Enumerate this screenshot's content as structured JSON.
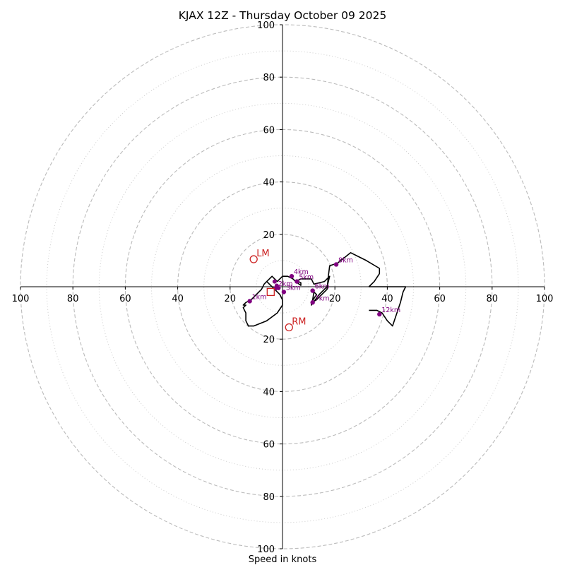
{
  "chart_data": {
    "type": "hodograph",
    "title": "KJAX 12Z - Thursday October 09 2025",
    "xlabel": "Speed in knots",
    "range": 100,
    "major_rings": [
      20,
      40,
      60,
      80,
      100
    ],
    "minor_rings": [
      10,
      30,
      50,
      70,
      90
    ],
    "tick_labels": [
      "100",
      "80",
      "60",
      "40",
      "20",
      "20",
      "40",
      "60",
      "80",
      "100"
    ],
    "y_tick_labels": [
      "100",
      "80",
      "60",
      "40",
      "20",
      "20",
      "40",
      "60",
      "80",
      "100"
    ],
    "trace": [
      [
        0,
        -5
      ],
      [
        -1,
        -3
      ],
      [
        -3,
        -1
      ],
      [
        -5,
        1
      ],
      [
        -6,
        2
      ],
      [
        -5,
        3
      ],
      [
        -4,
        4
      ],
      [
        -3,
        3
      ],
      [
        -2,
        2
      ],
      [
        0,
        4
      ],
      [
        2,
        4
      ],
      [
        4,
        3
      ],
      [
        5,
        2
      ],
      [
        6,
        2
      ],
      [
        7,
        1.5
      ],
      [
        7,
        0.5
      ],
      [
        5,
        2
      ],
      [
        7,
        3
      ],
      [
        11,
        3
      ],
      [
        12,
        1
      ],
      [
        16,
        2
      ],
      [
        18,
        4
      ],
      [
        17,
        0
      ],
      [
        14,
        -3
      ],
      [
        11,
        -7
      ],
      [
        11.5,
        -5
      ],
      [
        12,
        -2
      ],
      [
        13,
        -3
      ],
      [
        11,
        -6
      ],
      [
        13,
        -5
      ],
      [
        15,
        -3
      ],
      [
        17,
        -1
      ],
      [
        17.5,
        4
      ],
      [
        18,
        8
      ],
      [
        21,
        9
      ],
      [
        26,
        13
      ],
      [
        32,
        10
      ],
      [
        37,
        7
      ],
      [
        37,
        5
      ],
      [
        35,
        2
      ],
      [
        33,
        0
      ],
      [
        46,
        0
      ],
      [
        47,
        0
      ],
      [
        46,
        -2
      ],
      [
        45,
        -6
      ],
      [
        42,
        -15
      ],
      [
        40,
        -13
      ],
      [
        38,
        -10
      ],
      [
        36,
        -9
      ],
      [
        33,
        -9
      ]
    ],
    "trace_tail": [
      [
        0,
        -5
      ],
      [
        0,
        -7
      ],
      [
        -2,
        -10
      ],
      [
        -6,
        -13
      ],
      [
        -11,
        -15
      ],
      [
        -13,
        -15
      ],
      [
        -14,
        -13
      ],
      [
        -14,
        -10
      ],
      [
        -15,
        -8
      ],
      [
        -14,
        -7
      ],
      [
        -15,
        -7
      ],
      [
        -14,
        -6
      ],
      [
        -12,
        -5
      ],
      [
        -10,
        -3
      ],
      [
        -8,
        -1
      ],
      [
        -7,
        1
      ],
      [
        -6,
        2
      ]
    ],
    "height_markers": [
      {
        "label": "1km",
        "u": -12.5,
        "v": -5.5
      },
      {
        "label": "2km",
        "u": -2.5,
        "v": -0.5
      },
      {
        "label": "3km",
        "u": 0.5,
        "v": -2
      },
      {
        "label": "4km",
        "u": 3.5,
        "v": 4
      },
      {
        "label": "5km",
        "u": 5.5,
        "v": 2
      },
      {
        "label": "6km",
        "u": 11.5,
        "v": -1.5
      },
      {
        "label": "7km",
        "u": 11.5,
        "v": -6
      },
      {
        "label": "8km",
        "u": 20.5,
        "v": 8.5
      },
      {
        "label": "12km",
        "u": 37,
        "v": -10.5
      }
    ],
    "extra_points": [
      {
        "u": -3,
        "v": 2
      },
      {
        "u": -2.2,
        "v": 0.4
      },
      {
        "u": -1.5,
        "v": -0.5
      }
    ],
    "storm_motions": [
      {
        "label": "LM",
        "u": -11,
        "v": 10.5
      },
      {
        "label": "RM",
        "u": 2.5,
        "v": -15.5
      }
    ],
    "mean_wind": {
      "u": -4.5,
      "v": -2
    },
    "colors": {
      "trace": "#000000",
      "marker": "#800080",
      "storm": "#cc2222",
      "ring": "#bbbbbb",
      "axis": "#000000"
    }
  }
}
